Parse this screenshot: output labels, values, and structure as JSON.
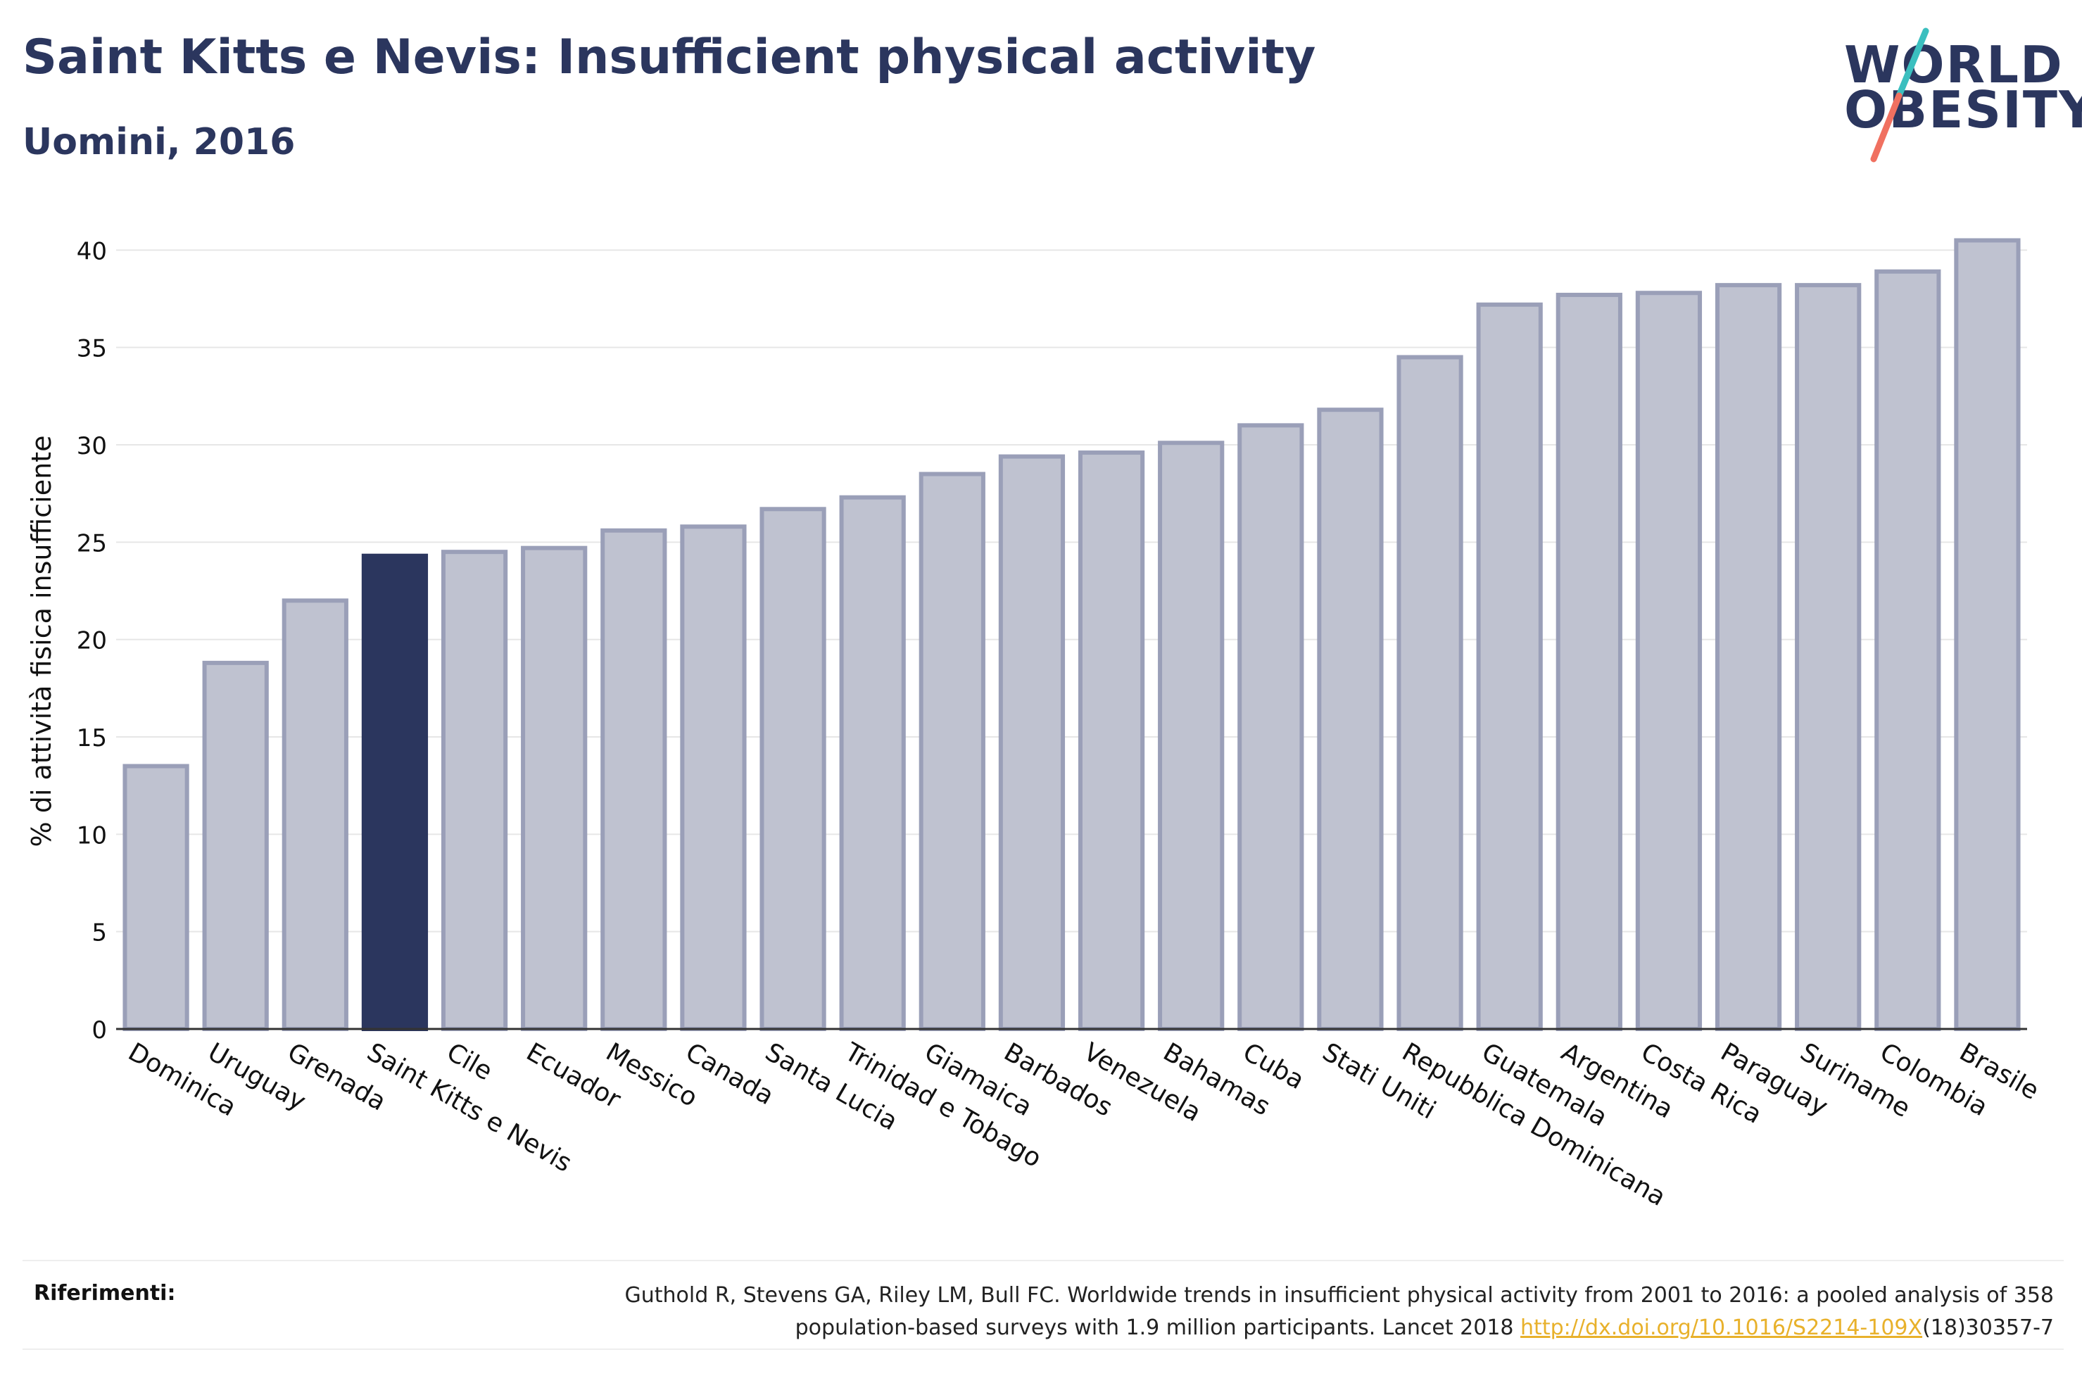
{
  "header": {
    "title": "Saint Kitts e Nevis: Insufficient physical activity",
    "subtitle": "Uomini, 2016"
  },
  "logo": {
    "line1": "WORLD",
    "line2": "OBESITY"
  },
  "references": {
    "label": "Riferimenti:",
    "line1": "Guthold R, Stevens GA, Riley LM, Bull FC. Worldwide trends in insufficient physical activity from 2001 to 2016: a pooled analysis of 358",
    "line2_prefix": "population-based surveys with 1.9 million participants. Lancet 2018 ",
    "link": "http://dx.doi.org/10.1016/S2214-109X",
    "line2_suffix": "(18)30357-7"
  },
  "colors": {
    "highlight": "#2b365e",
    "bar_fill": "#bfc2d0",
    "bar_stroke": "#9a9fb8",
    "grid": "#e6e6e6",
    "text": "#2b365e",
    "link": "#e8b12b",
    "logo_slash_top": "#3bbfbf",
    "logo_slash_bottom": "#f07060"
  },
  "chart_data": {
    "type": "bar",
    "title": "Saint Kitts e Nevis: Insufficient physical activity",
    "subtitle": "Uomini, 2016",
    "xlabel": "",
    "ylabel": "% di attività fisica insufficiente",
    "ylim": [
      0,
      42
    ],
    "yticks": [
      0,
      5,
      10,
      15,
      20,
      25,
      30,
      35,
      40
    ],
    "grid": true,
    "highlight": "Saint Kitts e Nevis",
    "categories": [
      "Dominica",
      "Uruguay",
      "Grenada",
      "Saint Kitts e Nevis",
      "Cile",
      "Ecuador",
      "Messico",
      "Canada",
      "Santa Lucia",
      "Trinidad e Tobago",
      "Giamaica",
      "Barbados",
      "Venezuela",
      "Bahamas",
      "Cuba",
      "Stati Uniti",
      "Repubblica Dominicana",
      "Guatemala",
      "Argentina",
      "Costa Rica",
      "Paraguay",
      "Suriname",
      "Colombia",
      "Brasile"
    ],
    "values": [
      13.5,
      18.8,
      22.0,
      24.3,
      24.5,
      24.7,
      25.6,
      25.8,
      26.7,
      27.3,
      28.5,
      29.4,
      29.6,
      30.1,
      31.0,
      31.8,
      34.5,
      37.2,
      37.7,
      37.8,
      38.2,
      38.2,
      38.9,
      40.5
    ]
  }
}
